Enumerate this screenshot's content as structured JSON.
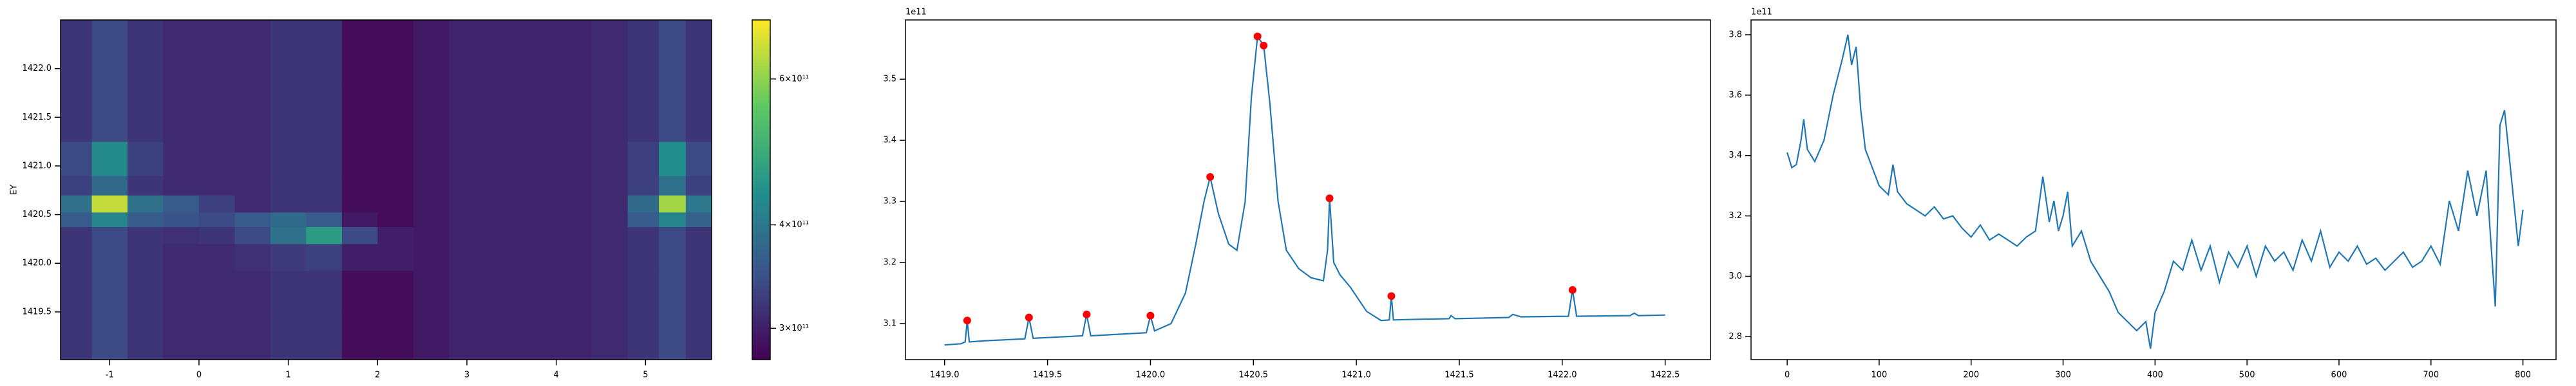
{
  "chart_data": [
    {
      "type": "heatmap",
      "ylabel": "EY",
      "x": [
        -1.4,
        -1.0,
        -0.6,
        -0.2,
        0.2,
        0.6,
        1.0,
        1.4,
        1.8,
        2.2,
        2.6,
        3.0,
        3.4,
        3.8,
        4.2,
        4.6,
        5.0,
        5.3,
        5.6
      ],
      "y": [
        1419.25,
        1419.75,
        1420.1,
        1420.3,
        1420.45,
        1420.6,
        1420.8,
        1421.0,
        1421.5,
        1422.2
      ],
      "z": [
        [
          320000000000.0,
          340000000000.0,
          320000000000.0,
          310000000000.0,
          310000000000.0,
          310000000000.0,
          320000000000.0,
          320000000000.0,
          285000000000.0,
          285000000000.0,
          295000000000.0,
          305000000000.0,
          305000000000.0,
          305000000000.0,
          305000000000.0,
          310000000000.0,
          320000000000.0,
          340000000000.0,
          320000000000.0
        ],
        [
          320000000000.0,
          340000000000.0,
          320000000000.0,
          310000000000.0,
          310000000000.0,
          310000000000.0,
          320000000000.0,
          320000000000.0,
          285000000000.0,
          285000000000.0,
          295000000000.0,
          305000000000.0,
          305000000000.0,
          305000000000.0,
          305000000000.0,
          310000000000.0,
          320000000000.0,
          340000000000.0,
          320000000000.0
        ],
        [
          320000000000.0,
          340000000000.0,
          320000000000.0,
          310000000000.0,
          310000000000.0,
          315000000000.0,
          325000000000.0,
          330000000000.0,
          300000000000.0,
          300000000000.0,
          295000000000.0,
          305000000000.0,
          305000000000.0,
          305000000000.0,
          305000000000.0,
          310000000000.0,
          320000000000.0,
          340000000000.0,
          320000000000.0
        ],
        [
          320000000000.0,
          340000000000.0,
          320000000000.0,
          315000000000.0,
          320000000000.0,
          340000000000.0,
          390000000000.0,
          460000000000.0,
          340000000000.0,
          300000000000.0,
          295000000000.0,
          305000000000.0,
          305000000000.0,
          305000000000.0,
          305000000000.0,
          310000000000.0,
          320000000000.0,
          340000000000.0,
          320000000000.0
        ],
        [
          360000000000.0,
          420000000000.0,
          360000000000.0,
          350000000000.0,
          340000000000.0,
          360000000000.0,
          380000000000.0,
          360000000000.0,
          295000000000.0,
          285000000000.0,
          295000000000.0,
          305000000000.0,
          305000000000.0,
          305000000000.0,
          305000000000.0,
          310000000000.0,
          360000000000.0,
          420000000000.0,
          370000000000.0
        ],
        [
          390000000000.0,
          650000000000.0,
          390000000000.0,
          360000000000.0,
          330000000000.0,
          310000000000.0,
          320000000000.0,
          320000000000.0,
          285000000000.0,
          285000000000.0,
          295000000000.0,
          305000000000.0,
          305000000000.0,
          305000000000.0,
          305000000000.0,
          310000000000.0,
          380000000000.0,
          620000000000.0,
          400000000000.0
        ],
        [
          330000000000.0,
          380000000000.0,
          320000000000.0,
          310000000000.0,
          310000000000.0,
          310000000000.0,
          320000000000.0,
          320000000000.0,
          285000000000.0,
          285000000000.0,
          295000000000.0,
          305000000000.0,
          305000000000.0,
          305000000000.0,
          305000000000.0,
          310000000000.0,
          330000000000.0,
          390000000000.0,
          330000000000.0
        ],
        [
          340000000000.0,
          430000000000.0,
          330000000000.0,
          310000000000.0,
          310000000000.0,
          310000000000.0,
          320000000000.0,
          320000000000.0,
          285000000000.0,
          285000000000.0,
          295000000000.0,
          305000000000.0,
          305000000000.0,
          305000000000.0,
          305000000000.0,
          310000000000.0,
          330000000000.0,
          440000000000.0,
          340000000000.0
        ],
        [
          320000000000.0,
          340000000000.0,
          320000000000.0,
          310000000000.0,
          310000000000.0,
          310000000000.0,
          320000000000.0,
          320000000000.0,
          285000000000.0,
          285000000000.0,
          295000000000.0,
          305000000000.0,
          305000000000.0,
          305000000000.0,
          305000000000.0,
          310000000000.0,
          320000000000.0,
          340000000000.0,
          320000000000.0
        ],
        [
          320000000000.0,
          340000000000.0,
          320000000000.0,
          310000000000.0,
          310000000000.0,
          310000000000.0,
          320000000000.0,
          320000000000.0,
          285000000000.0,
          285000000000.0,
          295000000000.0,
          305000000000.0,
          305000000000.0,
          305000000000.0,
          305000000000.0,
          310000000000.0,
          320000000000.0,
          340000000000.0,
          320000000000.0
        ]
      ],
      "xlim": [
        -1.55,
        5.74
      ],
      "ylim": [
        1419.01,
        1422.5
      ],
      "xticks": [
        -1,
        0,
        1,
        2,
        3,
        4,
        5
      ],
      "yticks": [
        1419.5,
        {
          "value": 1420,
          "label": "1420.0"
        },
        1420.5,
        {
          "value": 1421,
          "label": "1421.0"
        },
        1421.5,
        {
          "value": 1422,
          "label": "1422.0"
        }
      ],
      "colormap": "viridis",
      "colorbar": {
        "scale": "log",
        "lim": [
          275000000000.0,
          707000000000.0
        ],
        "ticks": [
          {
            "value": 300000000000.0,
            "label": "3×10¹¹"
          },
          {
            "value": 400000000000.0,
            "label": "4×10¹¹"
          },
          {
            "value": 600000000000.0,
            "label": "6×10¹¹"
          }
        ]
      }
    },
    {
      "type": "line",
      "offset_text": "1e11",
      "color": "#1f77b4",
      "x": [
        1419.0,
        1419.08,
        1419.1,
        1419.11,
        1419.12,
        1419.2,
        1419.39,
        1419.41,
        1419.43,
        1419.67,
        1419.69,
        1419.71,
        1419.98,
        1420.0,
        1420.02,
        1420.1,
        1420.17,
        1420.22,
        1420.26,
        1420.29,
        1420.33,
        1420.38,
        1420.42,
        1420.46,
        1420.49,
        1420.52,
        1420.55,
        1420.58,
        1420.62,
        1420.66,
        1420.72,
        1420.78,
        1420.84,
        1420.86,
        1420.87,
        1420.89,
        1420.92,
        1420.97,
        1421.05,
        1421.12,
        1421.16,
        1421.17,
        1421.18,
        1421.3,
        1421.45,
        1421.46,
        1421.48,
        1421.74,
        1421.76,
        1421.8,
        1422.03,
        1422.05,
        1422.07,
        1422.33,
        1422.35,
        1422.37,
        1422.5
      ],
      "values": [
        3.065,
        3.067,
        3.07,
        3.105,
        3.07,
        3.072,
        3.075,
        3.11,
        3.076,
        3.08,
        3.115,
        3.08,
        3.085,
        3.113,
        3.088,
        3.1,
        3.15,
        3.23,
        3.3,
        3.34,
        3.28,
        3.23,
        3.22,
        3.3,
        3.47,
        3.57,
        3.555,
        3.46,
        3.3,
        3.22,
        3.19,
        3.175,
        3.17,
        3.22,
        3.305,
        3.2,
        3.18,
        3.16,
        3.12,
        3.105,
        3.106,
        3.145,
        3.106,
        3.107,
        3.108,
        3.113,
        3.108,
        3.11,
        3.115,
        3.111,
        3.112,
        3.155,
        3.112,
        3.113,
        3.117,
        3.113,
        3.114
      ],
      "peaks": {
        "color": "red",
        "x": [
          1419.11,
          1419.41,
          1419.69,
          1420.0,
          1420.29,
          1420.52,
          1420.55,
          1420.87,
          1421.17,
          1422.05
        ],
        "values": [
          3.105,
          3.11,
          3.115,
          3.113,
          3.34,
          3.57,
          3.555,
          3.305,
          3.145,
          3.155
        ]
      },
      "xlim": [
        1418.81,
        1422.72
      ],
      "ylim": [
        3.041,
        3.597
      ],
      "xticks": [
        {
          "value": 1419,
          "label": "1419.0"
        },
        1419.5,
        {
          "value": 1420,
          "label": "1420.0"
        },
        1420.5,
        {
          "value": 1421,
          "label": "1421.0"
        },
        1421.5,
        {
          "value": 1422,
          "label": "1422.0"
        },
        1422.5
      ],
      "yticks": [
        3.1,
        3.2,
        3.3,
        3.4,
        3.5
      ]
    },
    {
      "type": "line",
      "offset_text": "1e11",
      "color": "#1f77b4",
      "x": [
        0,
        5,
        10,
        15,
        18,
        22,
        30,
        40,
        50,
        60,
        66,
        70,
        75,
        80,
        85,
        90,
        100,
        110,
        115,
        120,
        130,
        140,
        150,
        160,
        170,
        180,
        190,
        200,
        210,
        220,
        230,
        240,
        250,
        260,
        270,
        278,
        285,
        290,
        295,
        300,
        305,
        310,
        320,
        330,
        340,
        350,
        360,
        370,
        380,
        390,
        395,
        400,
        410,
        420,
        430,
        440,
        450,
        460,
        470,
        480,
        490,
        500,
        510,
        520,
        530,
        540,
        550,
        560,
        570,
        580,
        590,
        600,
        610,
        620,
        630,
        640,
        650,
        660,
        670,
        680,
        690,
        700,
        710,
        720,
        730,
        740,
        750,
        760,
        765,
        770,
        775,
        780,
        785,
        790,
        795,
        800
      ],
      "values": [
        3.41,
        3.36,
        3.37,
        3.45,
        3.52,
        3.42,
        3.38,
        3.45,
        3.6,
        3.72,
        3.8,
        3.7,
        3.76,
        3.55,
        3.42,
        3.38,
        3.3,
        3.27,
        3.37,
        3.28,
        3.24,
        3.22,
        3.2,
        3.23,
        3.19,
        3.2,
        3.16,
        3.13,
        3.17,
        3.12,
        3.14,
        3.12,
        3.1,
        3.13,
        3.15,
        3.33,
        3.18,
        3.25,
        3.15,
        3.2,
        3.28,
        3.1,
        3.15,
        3.05,
        3.0,
        2.95,
        2.88,
        2.85,
        2.82,
        2.85,
        2.76,
        2.88,
        2.95,
        3.05,
        3.02,
        3.12,
        3.02,
        3.1,
        2.98,
        3.08,
        3.03,
        3.1,
        3.0,
        3.1,
        3.05,
        3.08,
        3.02,
        3.12,
        3.05,
        3.15,
        3.03,
        3.08,
        3.05,
        3.1,
        3.04,
        3.06,
        3.02,
        3.05,
        3.08,
        3.03,
        3.05,
        3.1,
        3.04,
        3.25,
        3.15,
        3.35,
        3.2,
        3.35,
        3.12,
        2.9,
        3.5,
        3.55,
        3.4,
        3.25,
        3.1,
        3.22
      ],
      "xlim": [
        -39.3,
        836
      ],
      "ylim": [
        2.724,
        3.849
      ],
      "xticks": [
        0,
        100,
        200,
        300,
        400,
        500,
        600,
        700,
        800
      ],
      "yticks": [
        2.8,
        {
          "value": 3,
          "label": "3.0"
        },
        3.2,
        3.4,
        3.6,
        3.8
      ]
    }
  ]
}
